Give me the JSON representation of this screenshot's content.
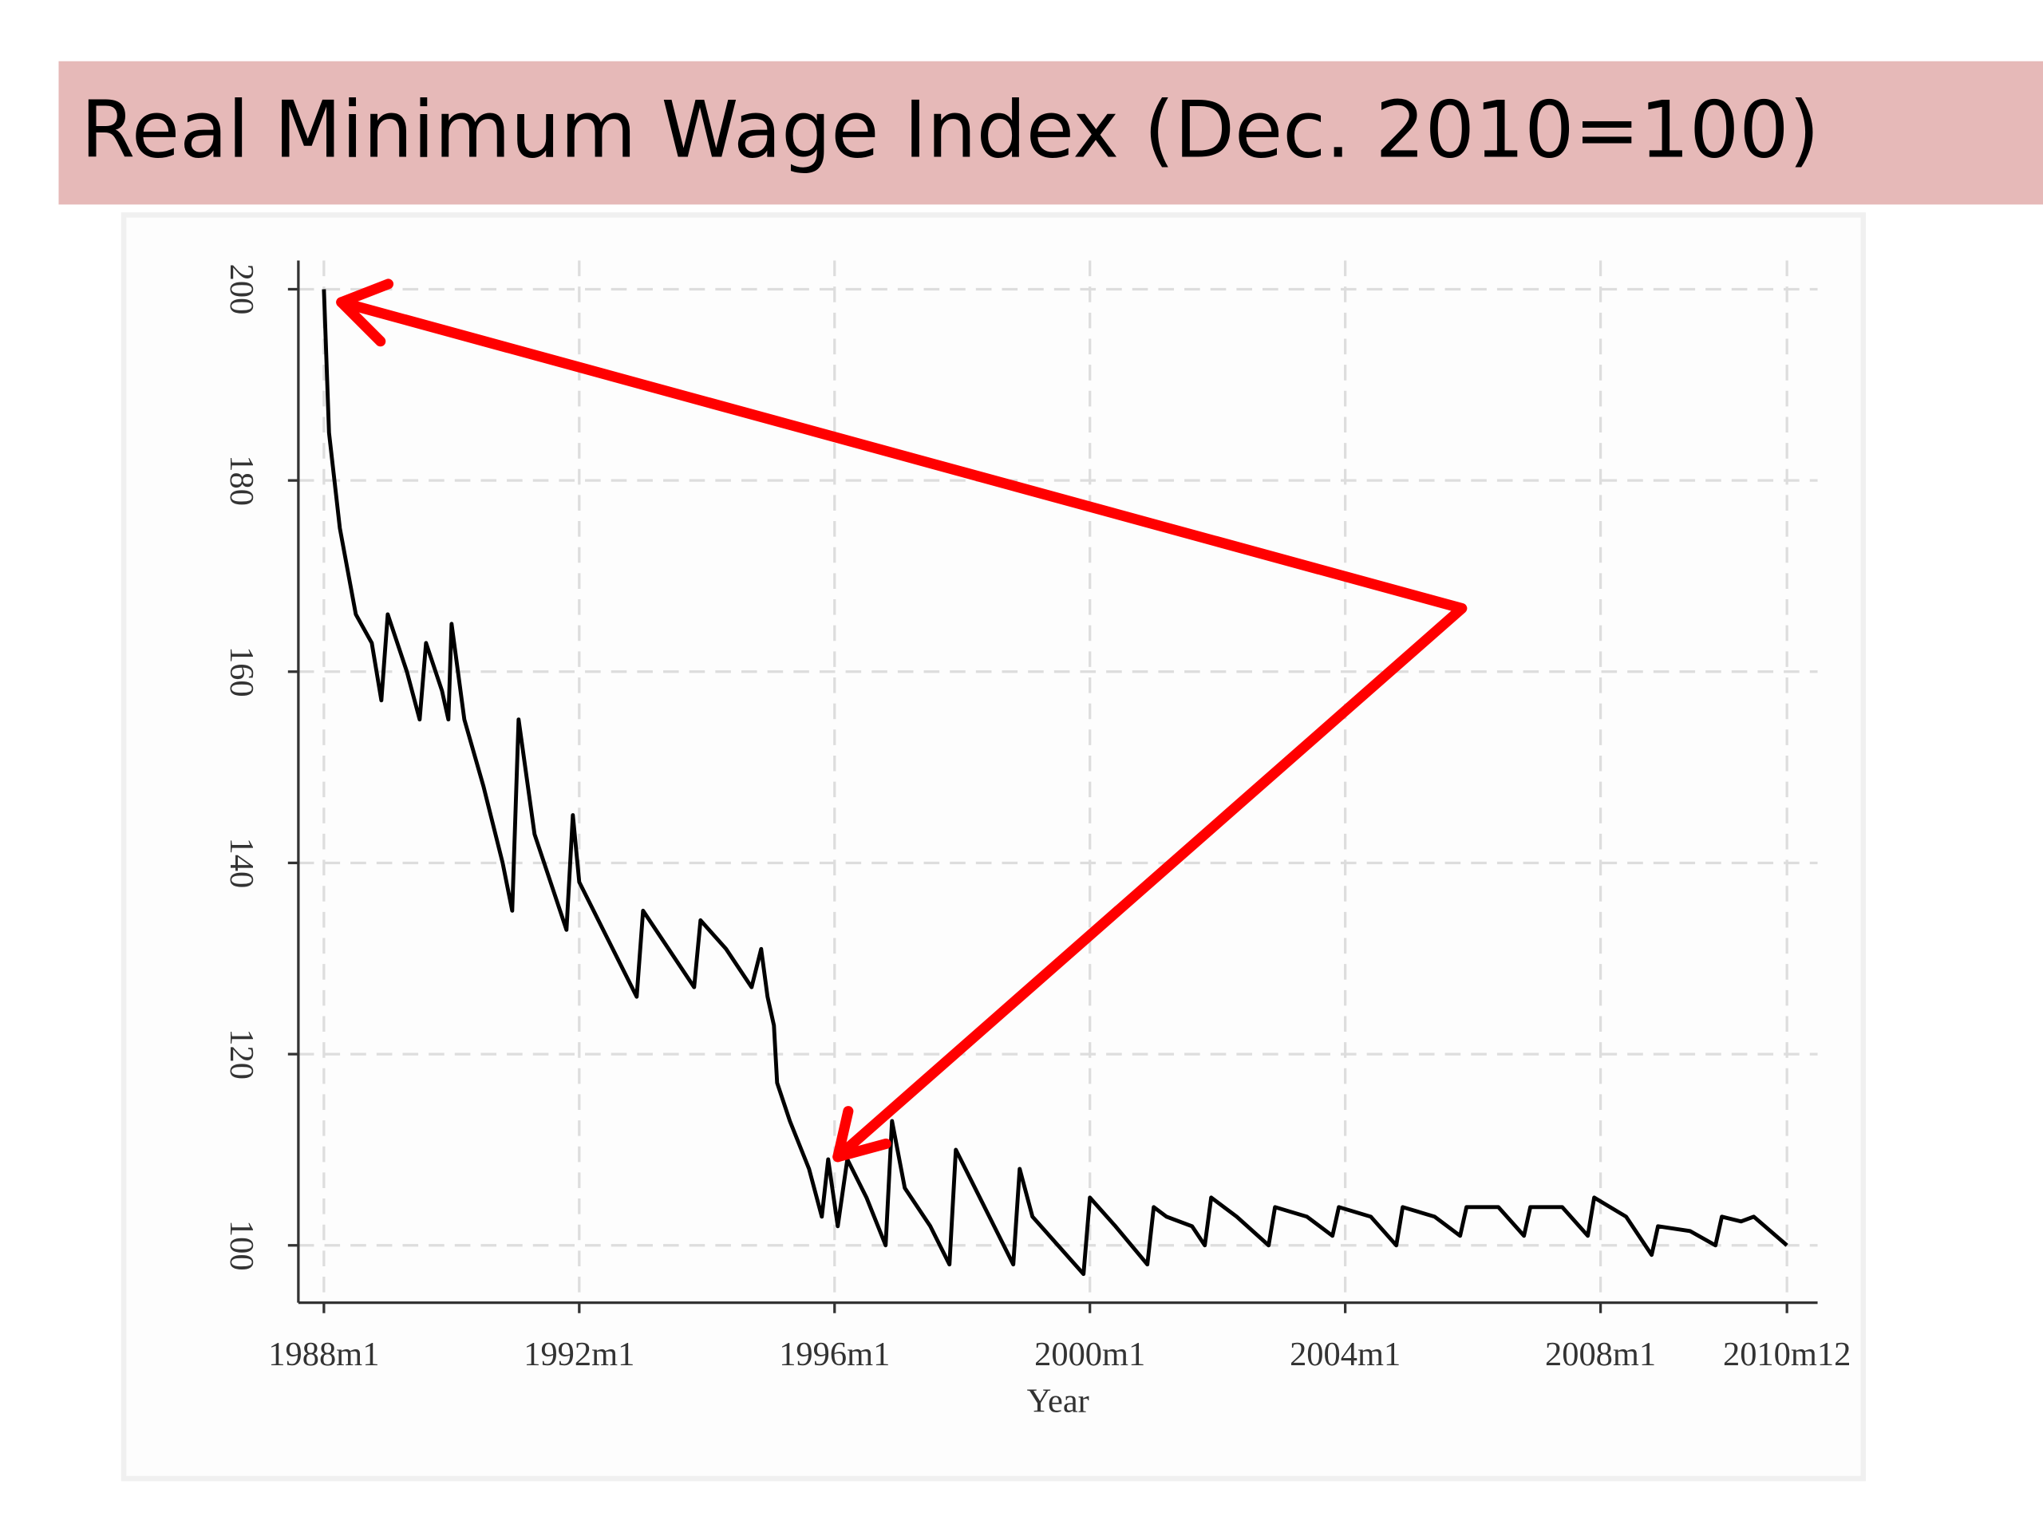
{
  "chart_data": {
    "type": "line",
    "title": "Real Minimum Wage Index (Dec. 2010=100)",
    "xlabel": "Year",
    "x": [
      1988.0,
      1988.08,
      1988.25,
      1988.5,
      1988.75,
      1988.9,
      1989.0,
      1989.3,
      1989.5,
      1989.6,
      1989.85,
      1989.95,
      1990.0,
      1990.2,
      1990.5,
      1990.8,
      1990.95,
      1991.05,
      1991.3,
      1991.6,
      1991.8,
      1991.9,
      1992.0,
      1992.3,
      1992.6,
      1992.9,
      1993.0,
      1993.4,
      1993.8,
      1993.9,
      1994.3,
      1994.7,
      1994.85,
      1994.95,
      1995.05,
      1995.1,
      1995.3,
      1995.6,
      1995.8,
      1995.9,
      1996.05,
      1996.2,
      1996.5,
      1996.8,
      1996.9,
      1997.1,
      1997.5,
      1997.8,
      1997.9,
      1998.2,
      1998.5,
      1998.8,
      1998.9,
      1999.1,
      1999.5,
      1999.9,
      2000.0,
      2000.4,
      2000.9,
      2001.0,
      2001.2,
      2001.6,
      2001.8,
      2001.9,
      2002.3,
      2002.8,
      2002.9,
      2003.4,
      2003.8,
      2003.9,
      2004.4,
      2004.8,
      2004.9,
      2005.4,
      2005.8,
      2005.9,
      2006.4,
      2006.8,
      2006.9,
      2007.4,
      2007.8,
      2007.9,
      2008.4,
      2008.8,
      2008.9,
      2009.4,
      2009.8,
      2009.9,
      2010.2,
      2010.4,
      2010.92
    ],
    "series": [
      {
        "color": "#000000",
        "values": [
          200,
          185,
          175,
          166,
          163,
          157,
          166,
          160,
          155,
          163,
          158,
          155,
          165,
          155,
          148,
          140,
          135,
          155,
          143,
          137,
          133,
          145,
          138,
          134,
          130,
          126,
          135,
          131,
          127,
          134,
          131,
          127,
          131,
          126,
          123,
          117,
          113,
          108,
          103,
          109,
          102,
          109,
          105,
          100,
          113,
          106,
          102,
          98,
          110,
          106,
          102,
          98,
          108,
          103,
          100,
          97,
          105,
          102,
          98,
          104,
          103,
          102,
          100,
          105,
          103,
          100,
          104,
          103,
          101,
          104,
          103,
          100,
          104,
          103,
          101,
          104,
          104,
          101,
          104,
          104,
          101,
          105,
          103,
          99,
          102,
          101.5,
          100,
          103,
          102.5,
          103,
          100
        ]
      }
    ],
    "xlim": [
      1987.6,
      2011.4
    ],
    "xticks": [
      {
        "value": 1988,
        "label": "1988m1"
      },
      {
        "value": 1992,
        "label": "1992m1"
      },
      {
        "value": 1996,
        "label": "1996m1"
      },
      {
        "value": 2000,
        "label": "2000m1"
      },
      {
        "value": 2004,
        "label": "2004m1"
      },
      {
        "value": 2008,
        "label": "2008m1"
      },
      {
        "value": 2010.92,
        "label": "2010m12"
      }
    ],
    "ylim": [
      94,
      203
    ],
    "yticks": [
      100,
      120,
      140,
      160,
      180,
      200
    ],
    "grid": true
  }
}
